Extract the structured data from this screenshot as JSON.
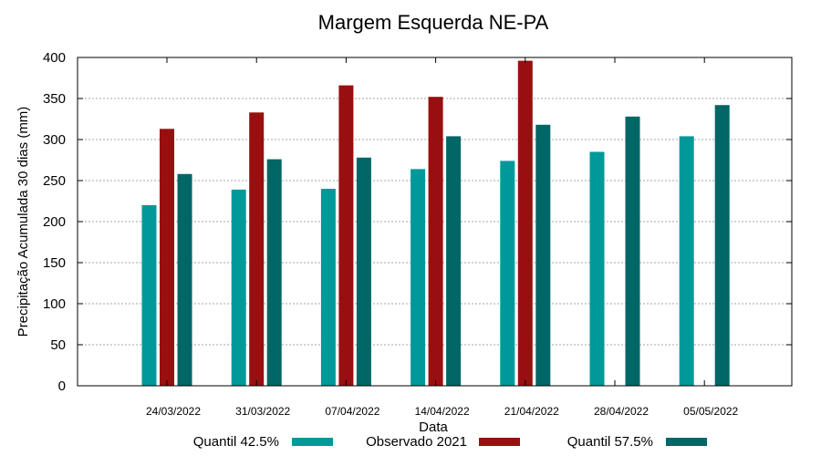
{
  "chart_data": {
    "type": "bar",
    "title": "Margem Esquerda NE-PA",
    "xlabel": "Data",
    "ylabel": "Precipitação Acumulada 30 dias (mm)",
    "ylim": [
      0,
      400
    ],
    "yticks": [
      0,
      50,
      100,
      150,
      200,
      250,
      300,
      350,
      400
    ],
    "grid": true,
    "legend_position": "bottom",
    "categories": [
      "24/03/2022",
      "31/03/2022",
      "07/04/2022",
      "14/04/2022",
      "21/04/2022",
      "28/04/2022",
      "05/05/2022"
    ],
    "series": [
      {
        "name": "Quantil 42.5%",
        "color": "#009999",
        "values": [
          220,
          239,
          240,
          264,
          274,
          285,
          304
        ]
      },
      {
        "name": "Observado 2021",
        "color": "#990f0f",
        "values": [
          313,
          333,
          366,
          352,
          396,
          null,
          null
        ]
      },
      {
        "name": "Quantil 57.5%",
        "color": "#006666",
        "values": [
          258,
          276,
          278,
          304,
          318,
          328,
          342
        ]
      }
    ]
  }
}
